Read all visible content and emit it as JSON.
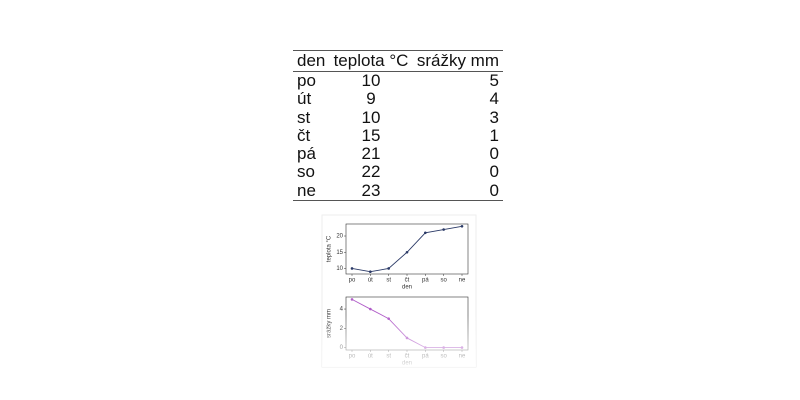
{
  "table": {
    "header": [
      "den",
      "teplota °C",
      "srážky mm"
    ],
    "rows": [
      [
        "po",
        10,
        5
      ],
      [
        "út",
        9,
        4
      ],
      [
        "st",
        10,
        3
      ],
      [
        "čt",
        15,
        1
      ],
      [
        "pá",
        21,
        0
      ],
      [
        "so",
        22,
        0
      ],
      [
        "ne",
        23,
        0
      ]
    ]
  },
  "chart_data": [
    {
      "type": "line",
      "xlabel": "den",
      "ylabel": "teplota °C",
      "categories": [
        "po",
        "út",
        "st",
        "čt",
        "pá",
        "so",
        "ne"
      ],
      "values": [
        10,
        9,
        10,
        15,
        21,
        22,
        23
      ],
      "color": "#2b3a67",
      "ylim": [
        8.3,
        23.7
      ],
      "yticks": [
        10,
        15,
        20
      ]
    },
    {
      "type": "line",
      "xlabel": "den",
      "ylabel": "srážky mm",
      "categories": [
        "po",
        "út",
        "st",
        "čt",
        "pá",
        "so",
        "ne"
      ],
      "values": [
        5,
        4,
        3,
        1,
        0,
        0,
        0
      ],
      "color": "#b05cc8",
      "ylim": [
        -0.25,
        5.25
      ],
      "yticks": [
        0,
        2,
        4
      ]
    }
  ]
}
